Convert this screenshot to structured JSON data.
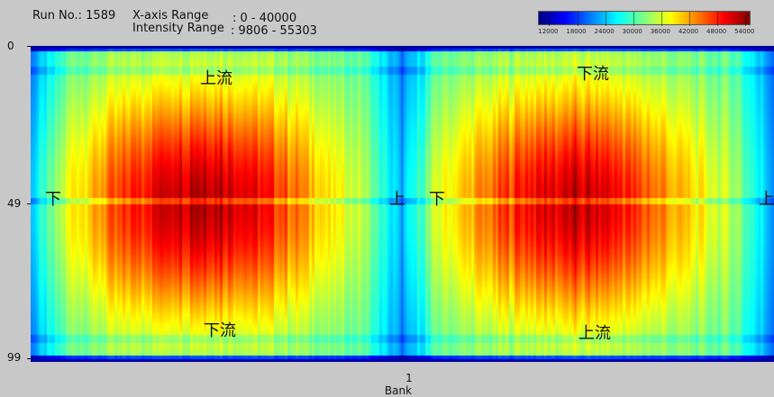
{
  "header": {
    "run_label": "Run No.: 1589",
    "xrange_label": "X-axis Range",
    "xrange_value": ": 0 - 40000",
    "irange_label": "Intensity Range",
    "irange_value": ": 9806 - 55303"
  },
  "colors": {
    "background": "#c8c8c8",
    "colormap": [
      "#00007f",
      "#0000ff",
      "#007fff",
      "#00ffff",
      "#7fff7f",
      "#ffff00",
      "#ff7f00",
      "#ff0000",
      "#7f0000"
    ]
  },
  "colorbar": {
    "min": 9806,
    "max": 55303,
    "ticks": [
      "12000",
      "18000",
      "24000",
      "30000",
      "36000",
      "42000",
      "48000",
      "54000"
    ]
  },
  "chart_data": {
    "type": "heatmap",
    "title": "",
    "xlabel": "Bank",
    "ylabel": "",
    "x_ticks": [
      "1"
    ],
    "y_ticks": [
      "0",
      "49",
      "99"
    ],
    "ylim": [
      0,
      99
    ],
    "intensity_range": [
      9806,
      55303
    ],
    "panels": [
      {
        "region": "left",
        "peak_intensity": 54000,
        "edge_intensity": 30000
      },
      {
        "region": "right",
        "peak_intensity": 52000,
        "edge_intensity": 30000
      }
    ],
    "annotations": [
      {
        "text": "上流",
        "panel": "left",
        "position": "top"
      },
      {
        "text": "下流",
        "panel": "left",
        "position": "bottom"
      },
      {
        "text": "下",
        "panel": "left",
        "position": "left-middle"
      },
      {
        "text": "上",
        "panel": "left",
        "position": "right-middle"
      },
      {
        "text": "下流",
        "panel": "right",
        "position": "top"
      },
      {
        "text": "上流",
        "panel": "right",
        "position": "bottom"
      },
      {
        "text": "下",
        "panel": "right",
        "position": "left-middle"
      },
      {
        "text": "上",
        "panel": "right",
        "position": "right-middle"
      }
    ]
  }
}
